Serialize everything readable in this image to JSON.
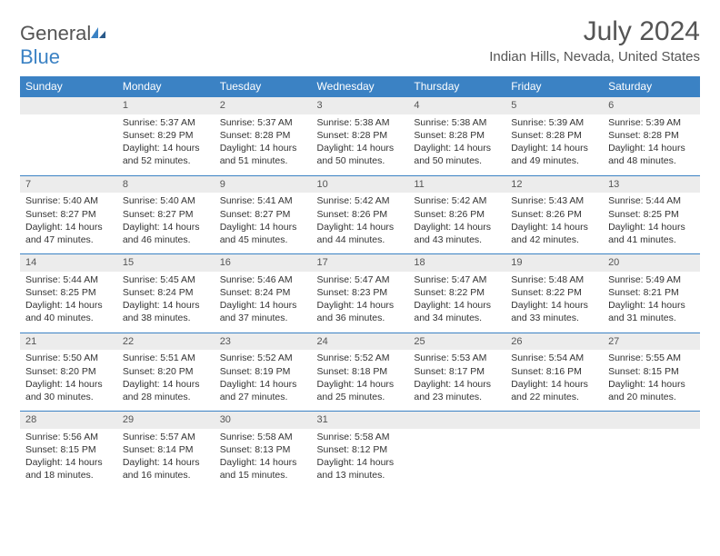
{
  "logo": {
    "text_gray": "General",
    "text_blue": "Blue"
  },
  "title": "July 2024",
  "location": "Indian Hills, Nevada, United States",
  "colors": {
    "header_bg": "#3b82c4",
    "header_text": "#ffffff",
    "daynum_bg": "#ececec",
    "border": "#3b82c4",
    "body_text": "#333333",
    "title_text": "#555555"
  },
  "day_headers": [
    "Sunday",
    "Monday",
    "Tuesday",
    "Wednesday",
    "Thursday",
    "Friday",
    "Saturday"
  ],
  "weeks": [
    {
      "nums": [
        "",
        "1",
        "2",
        "3",
        "4",
        "5",
        "6"
      ],
      "data": [
        null,
        {
          "sr": "Sunrise: 5:37 AM",
          "ss": "Sunset: 8:29 PM",
          "d1": "Daylight: 14 hours",
          "d2": "and 52 minutes."
        },
        {
          "sr": "Sunrise: 5:37 AM",
          "ss": "Sunset: 8:28 PM",
          "d1": "Daylight: 14 hours",
          "d2": "and 51 minutes."
        },
        {
          "sr": "Sunrise: 5:38 AM",
          "ss": "Sunset: 8:28 PM",
          "d1": "Daylight: 14 hours",
          "d2": "and 50 minutes."
        },
        {
          "sr": "Sunrise: 5:38 AM",
          "ss": "Sunset: 8:28 PM",
          "d1": "Daylight: 14 hours",
          "d2": "and 50 minutes."
        },
        {
          "sr": "Sunrise: 5:39 AM",
          "ss": "Sunset: 8:28 PM",
          "d1": "Daylight: 14 hours",
          "d2": "and 49 minutes."
        },
        {
          "sr": "Sunrise: 5:39 AM",
          "ss": "Sunset: 8:28 PM",
          "d1": "Daylight: 14 hours",
          "d2": "and 48 minutes."
        }
      ]
    },
    {
      "nums": [
        "7",
        "8",
        "9",
        "10",
        "11",
        "12",
        "13"
      ],
      "data": [
        {
          "sr": "Sunrise: 5:40 AM",
          "ss": "Sunset: 8:27 PM",
          "d1": "Daylight: 14 hours",
          "d2": "and 47 minutes."
        },
        {
          "sr": "Sunrise: 5:40 AM",
          "ss": "Sunset: 8:27 PM",
          "d1": "Daylight: 14 hours",
          "d2": "and 46 minutes."
        },
        {
          "sr": "Sunrise: 5:41 AM",
          "ss": "Sunset: 8:27 PM",
          "d1": "Daylight: 14 hours",
          "d2": "and 45 minutes."
        },
        {
          "sr": "Sunrise: 5:42 AM",
          "ss": "Sunset: 8:26 PM",
          "d1": "Daylight: 14 hours",
          "d2": "and 44 minutes."
        },
        {
          "sr": "Sunrise: 5:42 AM",
          "ss": "Sunset: 8:26 PM",
          "d1": "Daylight: 14 hours",
          "d2": "and 43 minutes."
        },
        {
          "sr": "Sunrise: 5:43 AM",
          "ss": "Sunset: 8:26 PM",
          "d1": "Daylight: 14 hours",
          "d2": "and 42 minutes."
        },
        {
          "sr": "Sunrise: 5:44 AM",
          "ss": "Sunset: 8:25 PM",
          "d1": "Daylight: 14 hours",
          "d2": "and 41 minutes."
        }
      ]
    },
    {
      "nums": [
        "14",
        "15",
        "16",
        "17",
        "18",
        "19",
        "20"
      ],
      "data": [
        {
          "sr": "Sunrise: 5:44 AM",
          "ss": "Sunset: 8:25 PM",
          "d1": "Daylight: 14 hours",
          "d2": "and 40 minutes."
        },
        {
          "sr": "Sunrise: 5:45 AM",
          "ss": "Sunset: 8:24 PM",
          "d1": "Daylight: 14 hours",
          "d2": "and 38 minutes."
        },
        {
          "sr": "Sunrise: 5:46 AM",
          "ss": "Sunset: 8:24 PM",
          "d1": "Daylight: 14 hours",
          "d2": "and 37 minutes."
        },
        {
          "sr": "Sunrise: 5:47 AM",
          "ss": "Sunset: 8:23 PM",
          "d1": "Daylight: 14 hours",
          "d2": "and 36 minutes."
        },
        {
          "sr": "Sunrise: 5:47 AM",
          "ss": "Sunset: 8:22 PM",
          "d1": "Daylight: 14 hours",
          "d2": "and 34 minutes."
        },
        {
          "sr": "Sunrise: 5:48 AM",
          "ss": "Sunset: 8:22 PM",
          "d1": "Daylight: 14 hours",
          "d2": "and 33 minutes."
        },
        {
          "sr": "Sunrise: 5:49 AM",
          "ss": "Sunset: 8:21 PM",
          "d1": "Daylight: 14 hours",
          "d2": "and 31 minutes."
        }
      ]
    },
    {
      "nums": [
        "21",
        "22",
        "23",
        "24",
        "25",
        "26",
        "27"
      ],
      "data": [
        {
          "sr": "Sunrise: 5:50 AM",
          "ss": "Sunset: 8:20 PM",
          "d1": "Daylight: 14 hours",
          "d2": "and 30 minutes."
        },
        {
          "sr": "Sunrise: 5:51 AM",
          "ss": "Sunset: 8:20 PM",
          "d1": "Daylight: 14 hours",
          "d2": "and 28 minutes."
        },
        {
          "sr": "Sunrise: 5:52 AM",
          "ss": "Sunset: 8:19 PM",
          "d1": "Daylight: 14 hours",
          "d2": "and 27 minutes."
        },
        {
          "sr": "Sunrise: 5:52 AM",
          "ss": "Sunset: 8:18 PM",
          "d1": "Daylight: 14 hours",
          "d2": "and 25 minutes."
        },
        {
          "sr": "Sunrise: 5:53 AM",
          "ss": "Sunset: 8:17 PM",
          "d1": "Daylight: 14 hours",
          "d2": "and 23 minutes."
        },
        {
          "sr": "Sunrise: 5:54 AM",
          "ss": "Sunset: 8:16 PM",
          "d1": "Daylight: 14 hours",
          "d2": "and 22 minutes."
        },
        {
          "sr": "Sunrise: 5:55 AM",
          "ss": "Sunset: 8:15 PM",
          "d1": "Daylight: 14 hours",
          "d2": "and 20 minutes."
        }
      ]
    },
    {
      "nums": [
        "28",
        "29",
        "30",
        "31",
        "",
        "",
        ""
      ],
      "data": [
        {
          "sr": "Sunrise: 5:56 AM",
          "ss": "Sunset: 8:15 PM",
          "d1": "Daylight: 14 hours",
          "d2": "and 18 minutes."
        },
        {
          "sr": "Sunrise: 5:57 AM",
          "ss": "Sunset: 8:14 PM",
          "d1": "Daylight: 14 hours",
          "d2": "and 16 minutes."
        },
        {
          "sr": "Sunrise: 5:58 AM",
          "ss": "Sunset: 8:13 PM",
          "d1": "Daylight: 14 hours",
          "d2": "and 15 minutes."
        },
        {
          "sr": "Sunrise: 5:58 AM",
          "ss": "Sunset: 8:12 PM",
          "d1": "Daylight: 14 hours",
          "d2": "and 13 minutes."
        },
        null,
        null,
        null
      ]
    }
  ]
}
